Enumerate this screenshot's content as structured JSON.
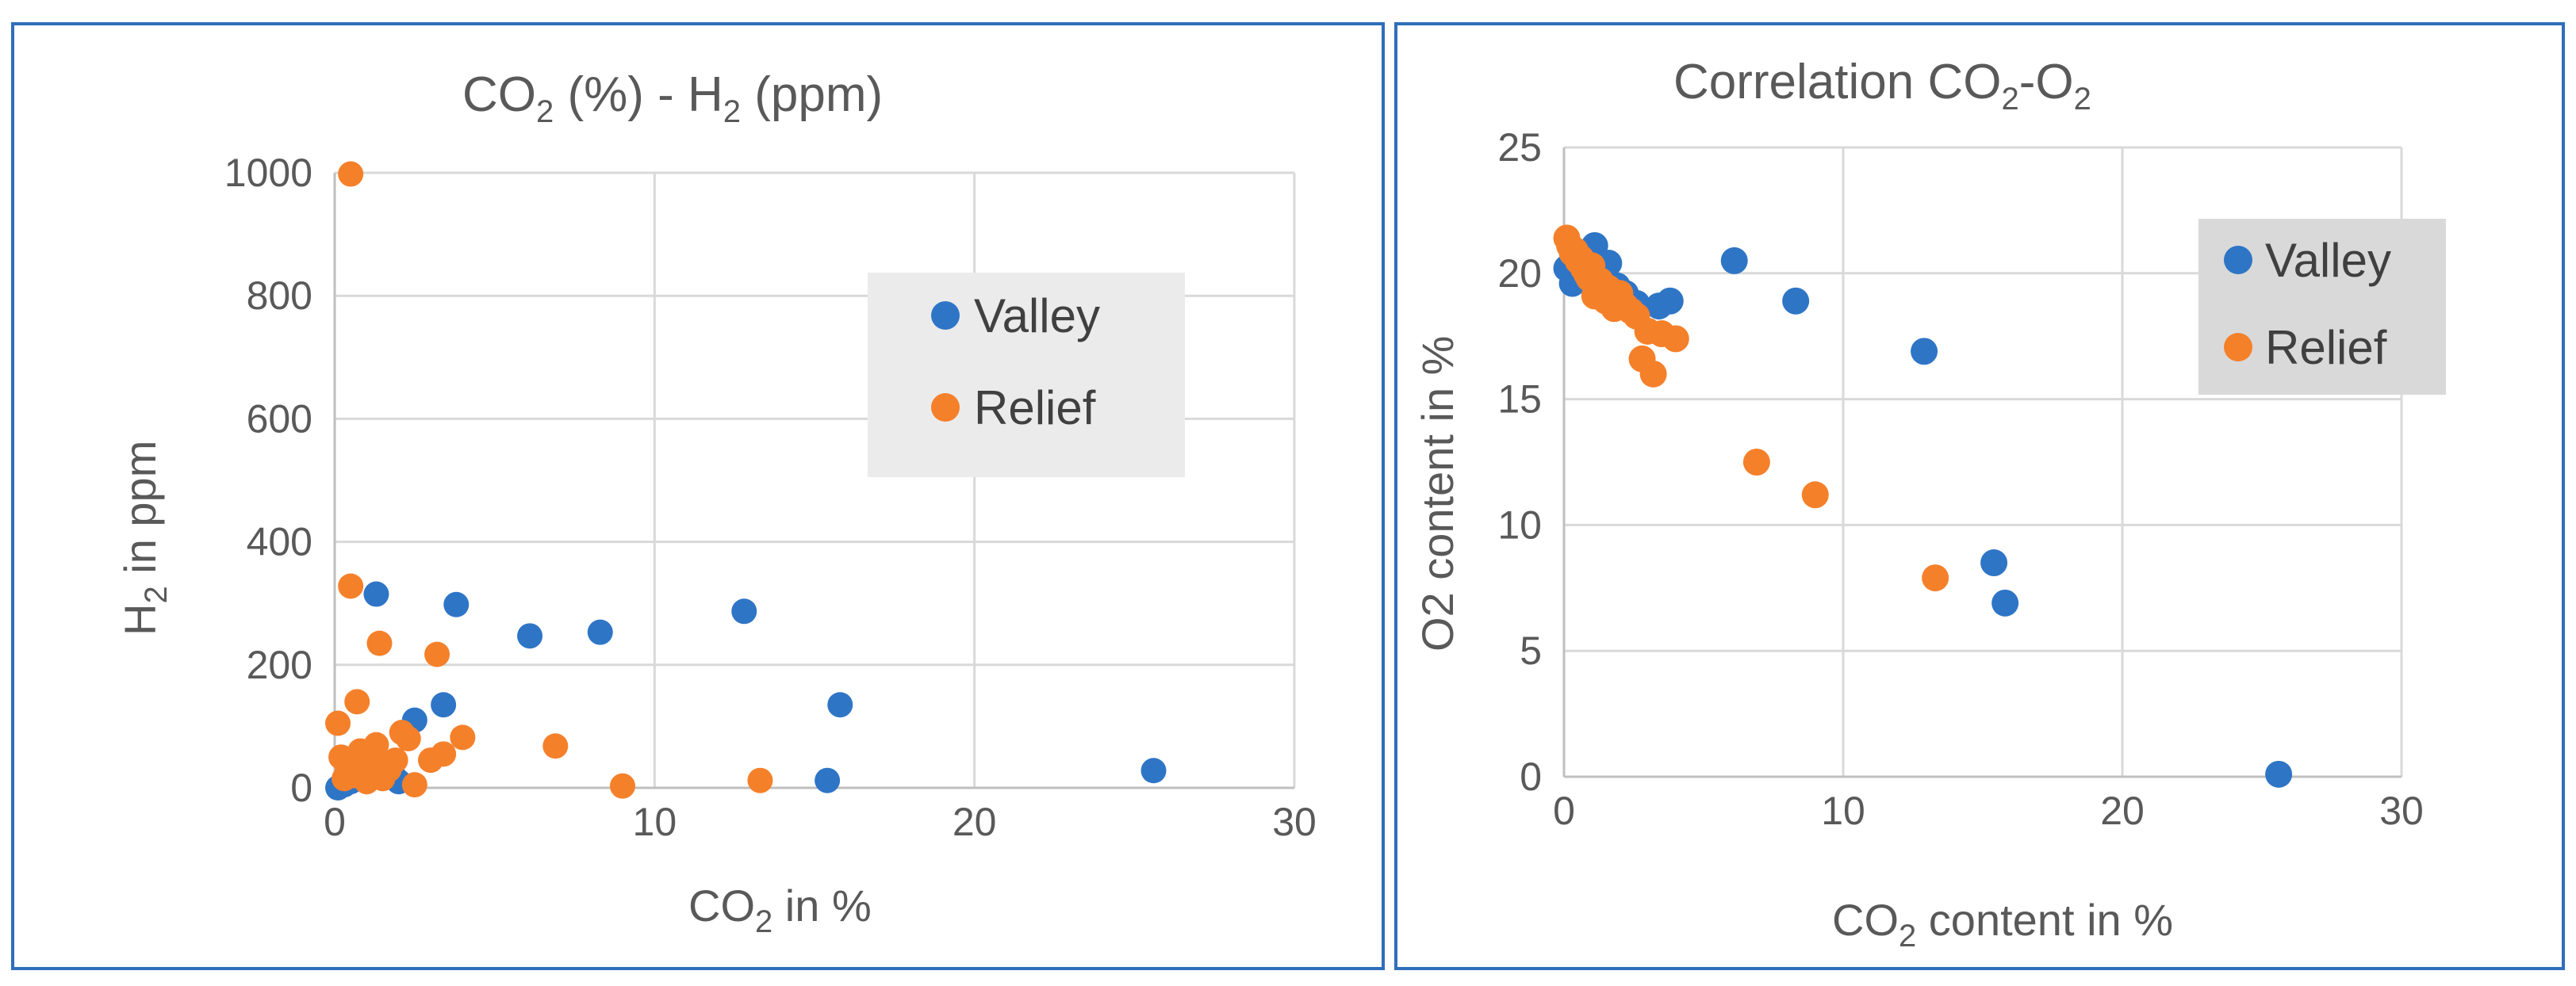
{
  "colors": {
    "valley": "#2e75c6",
    "relief": "#f5802a",
    "frame": "#2f6eba"
  },
  "chart_data": [
    {
      "type": "scatter",
      "title": {
        "base1": "CO",
        "sub1": "2",
        "mid": " (%) - H",
        "sub2": "2",
        "tail": " (ppm)"
      },
      "xlabel": {
        "base": "CO",
        "sub": "2",
        "tail": " in %"
      },
      "ylabel": {
        "base": "H",
        "sub": "2",
        "tail": " in ppm"
      },
      "xlim": [
        0,
        30
      ],
      "ylim": [
        0,
        1000
      ],
      "xticks": [
        0,
        10,
        20,
        30
      ],
      "yticks": [
        0,
        200,
        400,
        600,
        800,
        1000
      ],
      "grid": true,
      "legend_position": "right",
      "series": [
        {
          "name": "Valley",
          "color": "#2e75c6",
          "x": [
            0.1,
            0.3,
            0.5,
            1.0,
            1.3,
            1.6,
            2.0,
            2.5,
            3.4,
            3.8,
            6.1,
            8.3,
            12.8,
            15.4,
            15.8,
            25.6,
            0.8,
            1.9
          ],
          "y": [
            0,
            5,
            10,
            20,
            315,
            30,
            10,
            110,
            135,
            298,
            247,
            253,
            287,
            12,
            135,
            28,
            40,
            15
          ]
        },
        {
          "name": "Relief",
          "color": "#f5802a",
          "x": [
            0.5,
            0.5,
            0.7,
            0.1,
            0.2,
            0.4,
            0.6,
            0.8,
            1.0,
            1.2,
            1.4,
            1.5,
            1.7,
            1.9,
            2.1,
            2.3,
            2.5,
            3.0,
            3.2,
            3.4,
            4.0,
            6.9,
            9.0,
            13.3,
            1.3,
            0.3,
            0.9,
            1.1
          ],
          "y": [
            998,
            328,
            140,
            105,
            50,
            30,
            20,
            60,
            10,
            55,
            235,
            15,
            30,
            45,
            90,
            80,
            5,
            45,
            217,
            55,
            82,
            68,
            3,
            12,
            70,
            15,
            35,
            25
          ]
        }
      ]
    },
    {
      "type": "scatter",
      "title": {
        "base1": "Correlation CO",
        "sub1": "2",
        "mid": "-O",
        "sub2": "2",
        "tail": ""
      },
      "xlabel": {
        "base": "CO",
        "sub": "2",
        "tail": " content in %"
      },
      "ylabel": {
        "base": "O2 content in %",
        "sub": "",
        "tail": ""
      },
      "xlim": [
        0,
        30
      ],
      "ylim": [
        0,
        25
      ],
      "xticks": [
        0,
        10,
        20,
        30
      ],
      "yticks": [
        0,
        5,
        10,
        15,
        20,
        25
      ],
      "grid": true,
      "legend_position": "right",
      "series": [
        {
          "name": "Valley",
          "color": "#2e75c6",
          "x": [
            0.1,
            0.3,
            0.5,
            0.8,
            1.1,
            1.3,
            1.6,
            1.9,
            2.2,
            2.6,
            3.4,
            3.8,
            6.1,
            8.3,
            12.9,
            15.4,
            15.8,
            25.6
          ],
          "y": [
            20.2,
            19.6,
            20.5,
            20.0,
            21.1,
            19.8,
            20.4,
            19.5,
            19.2,
            18.8,
            18.7,
            18.9,
            20.5,
            18.9,
            16.9,
            8.5,
            6.9,
            0.1
          ]
        },
        {
          "name": "Relief",
          "color": "#f5802a",
          "x": [
            0.1,
            0.2,
            0.3,
            0.4,
            0.5,
            0.6,
            0.7,
            0.8,
            0.9,
            1.0,
            1.1,
            1.2,
            1.3,
            1.4,
            1.5,
            1.6,
            1.7,
            1.8,
            1.9,
            2.0,
            2.2,
            2.4,
            2.6,
            2.8,
            3.0,
            3.2,
            3.5,
            4.0,
            6.9,
            9.0,
            13.3
          ],
          "y": [
            21.4,
            21.1,
            20.8,
            20.9,
            20.5,
            20.6,
            20.2,
            20.0,
            19.8,
            20.3,
            19.1,
            19.5,
            19.7,
            19.2,
            18.9,
            19.4,
            19.0,
            18.6,
            18.8,
            19.2,
            18.7,
            18.5,
            18.3,
            16.6,
            17.7,
            16.0,
            17.6,
            17.4,
            12.5,
            11.2,
            7.9
          ]
        }
      ]
    }
  ]
}
